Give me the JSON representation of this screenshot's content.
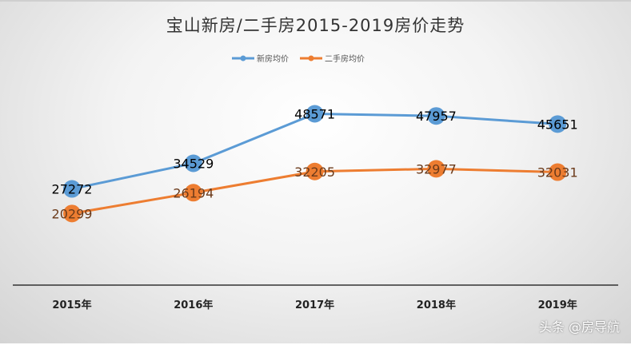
{
  "chart_data": {
    "type": "line",
    "title": "宝山新房/二手房2015-2019房价走势",
    "categories": [
      "2015年",
      "2016年",
      "2017年",
      "2018年",
      "2019年"
    ],
    "series": [
      {
        "name": "新房均价",
        "color": "#5b9bd5",
        "values": [
          27272,
          34529,
          48571,
          47957,
          45651
        ]
      },
      {
        "name": "二手房均价",
        "color": "#ed7d31",
        "values": [
          20299,
          26194,
          32205,
          32977,
          32031
        ]
      }
    ],
    "ylim": [
      0,
      60000
    ],
    "grid": false,
    "legend": "top"
  },
  "watermark": "头条 @房导航"
}
